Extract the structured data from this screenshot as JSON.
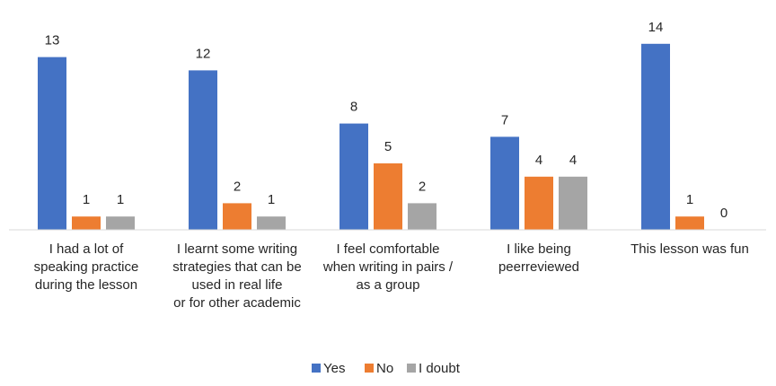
{
  "chart_data": {
    "type": "bar",
    "categories": [
      [
        "I had a lot of",
        "speaking practice",
        "during the lesson"
      ],
      [
        "I learnt some writing",
        "strategies that can be",
        "used in real life",
        "or for other academic"
      ],
      [
        "I feel comfortable",
        "when writing in pairs /",
        "as a group"
      ],
      [
        "I like being",
        "peerreviewed"
      ],
      [
        "This lesson was fun"
      ]
    ],
    "series": [
      {
        "name": "Yes",
        "color": "#4472C4",
        "values": [
          13,
          12,
          8,
          7,
          14
        ]
      },
      {
        "name": "No",
        "color": "#ED7D31",
        "values": [
          1,
          2,
          5,
          4,
          1
        ]
      },
      {
        "name": "I doubt",
        "color": "#A5A5A5",
        "values": [
          1,
          1,
          2,
          4,
          0
        ]
      }
    ],
    "ylim": [
      0,
      14
    ],
    "grid": false,
    "legend_position": "bottom"
  }
}
